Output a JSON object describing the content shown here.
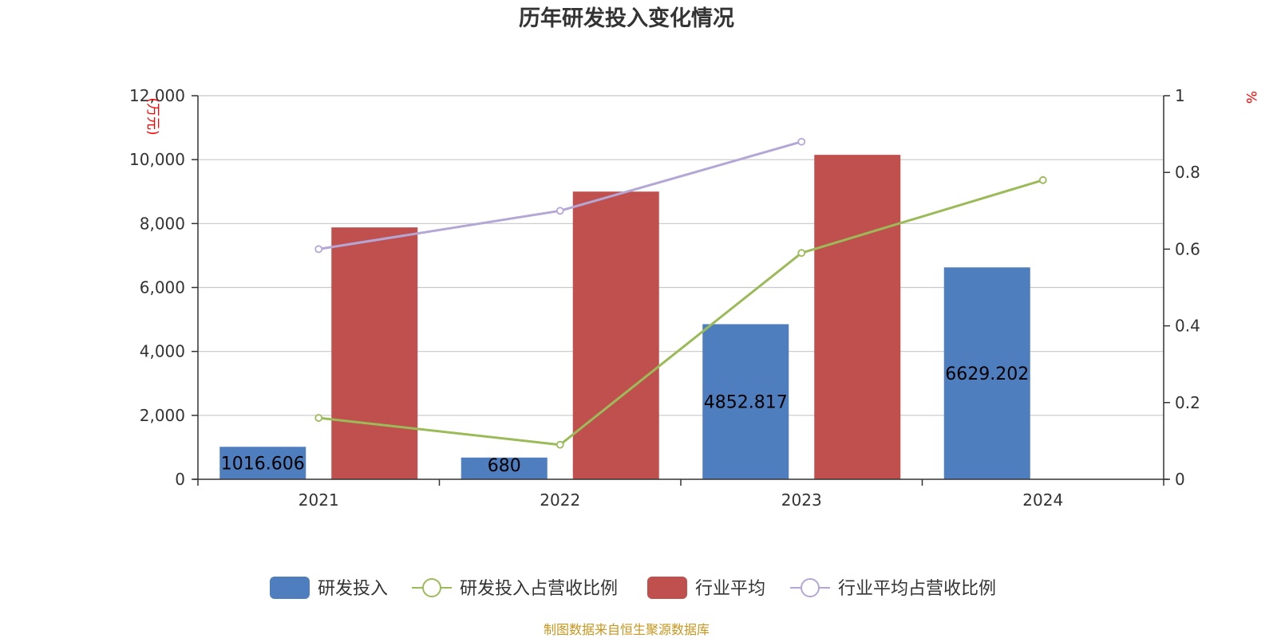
{
  "chart_data": {
    "type": "bar",
    "title": "历年研发投入变化情况",
    "categories": [
      "2021",
      "2022",
      "2023",
      "2024"
    ],
    "y_left": {
      "unit": "(万元)",
      "ylim": [
        0,
        12000
      ],
      "ticks": [
        0,
        2000,
        4000,
        6000,
        8000,
        10000,
        12000
      ],
      "tick_labels": [
        "0",
        "2,000",
        "4,000",
        "6,000",
        "8,000",
        "10,000",
        "12,000"
      ]
    },
    "y_right": {
      "unit": "%",
      "ylim": [
        0,
        1
      ],
      "ticks": [
        0,
        0.2,
        0.4,
        0.6,
        0.8,
        1
      ],
      "tick_labels": [
        "0",
        "0.2",
        "0.4",
        "0.6",
        "0.8",
        "1"
      ]
    },
    "series": [
      {
        "name": "研发投入",
        "type": "bar",
        "axis": "left",
        "color": "#4f7ebe",
        "values": [
          1016.606,
          680,
          4852.817,
          6629.202
        ],
        "labels": [
          "1016.606",
          "680",
          "4852.817",
          "6629.202"
        ]
      },
      {
        "name": "研发投入占营收比例",
        "type": "line",
        "axis": "right",
        "color": "#9bbb59",
        "values": [
          0.16,
          0.09,
          0.59,
          0.78
        ]
      },
      {
        "name": "行业平均",
        "type": "bar",
        "axis": "left",
        "color": "#c0504d",
        "values": [
          7880,
          9000,
          10150,
          null
        ]
      },
      {
        "name": "行业平均占营收比例",
        "type": "line",
        "axis": "right",
        "color": "#b4a7d6",
        "values": [
          0.6,
          0.7,
          0.88,
          null
        ]
      }
    ],
    "grid": true,
    "legend_position": "bottom"
  },
  "source_note": "制图数据来自恒生聚源数据库"
}
